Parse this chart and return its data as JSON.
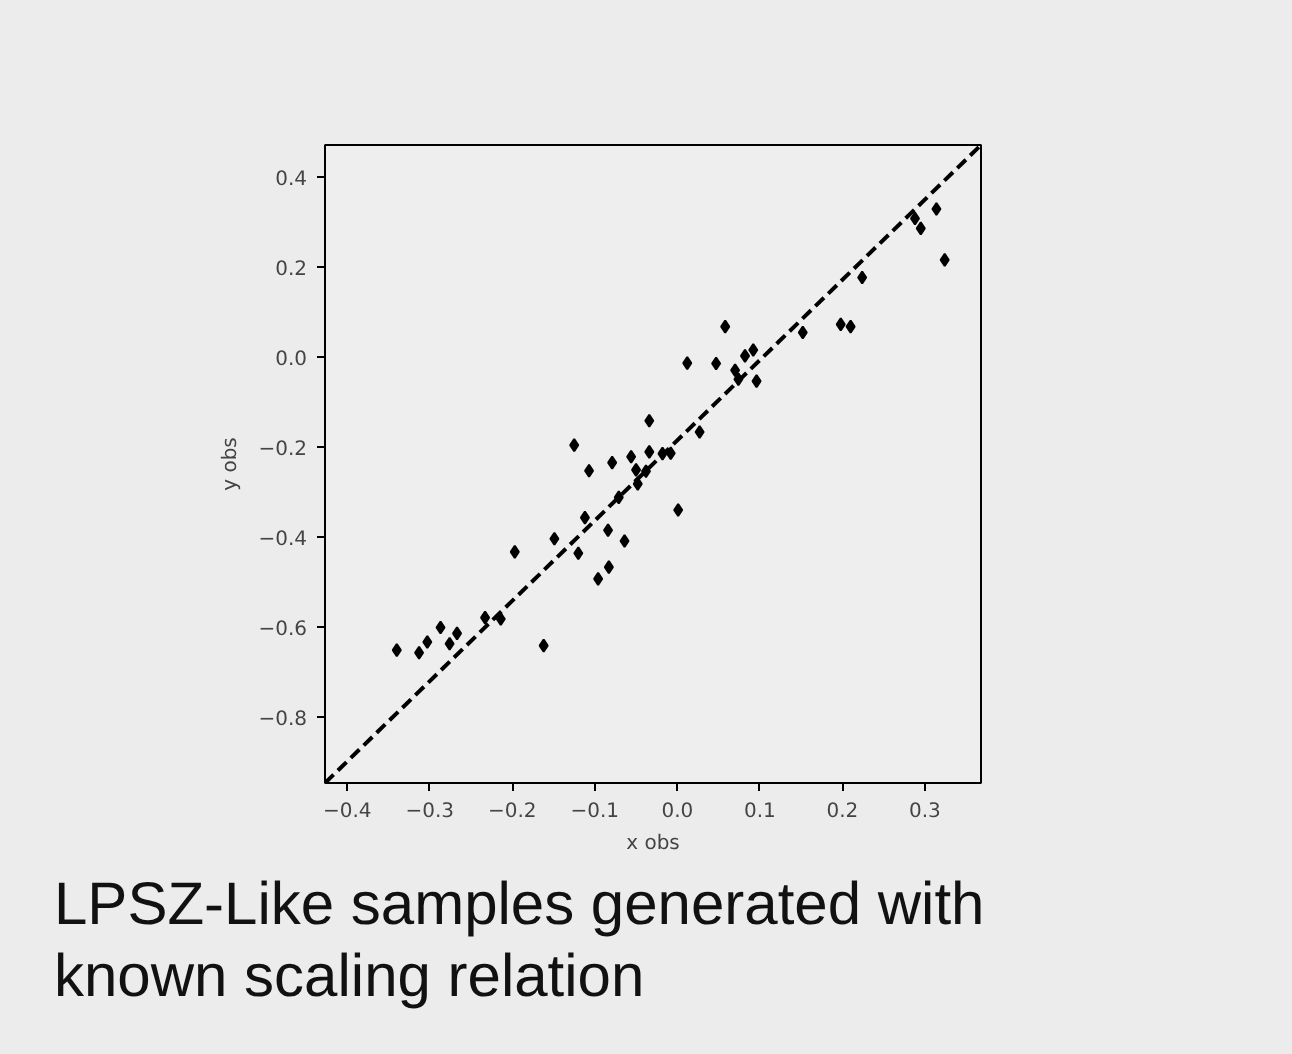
{
  "chart_data": {
    "type": "scatter",
    "xlabel": "x obs",
    "ylabel": "y obs",
    "annotations": [
      "LPSZ-Like samples generated with known scaling relation"
    ],
    "xlim": [
      -0.427,
      0.368
    ],
    "ylim": [
      -0.946,
      0.47
    ],
    "xticks": [
      {
        "value": -0.4,
        "label": "−0.4"
      },
      {
        "value": -0.3,
        "label": "−0.3"
      },
      {
        "value": -0.2,
        "label": "−0.2"
      },
      {
        "value": -0.1,
        "label": "−0.1"
      },
      {
        "value": 0.0,
        "label": "0.0"
      },
      {
        "value": 0.1,
        "label": "0.1"
      },
      {
        "value": 0.2,
        "label": "0.2"
      },
      {
        "value": 0.3,
        "label": "0.3"
      }
    ],
    "yticks": [
      {
        "value": -0.8,
        "label": "−0.8"
      },
      {
        "value": -0.6,
        "label": "−0.6"
      },
      {
        "value": -0.4,
        "label": "−0.4"
      },
      {
        "value": -0.2,
        "label": "−0.2"
      },
      {
        "value": 0.0,
        "label": "0.0"
      },
      {
        "value": 0.2,
        "label": "0.2"
      },
      {
        "value": 0.4,
        "label": "0.4"
      }
    ],
    "grid": false,
    "series": [
      {
        "type": "line",
        "color": "#000000",
        "line_style": "dashed",
        "marker": "none",
        "x": [
          -0.427,
          0.368
        ],
        "values": [
          -0.946,
          0.47
        ]
      },
      {
        "color": "#000000",
        "marker": "diamond",
        "x": [
          -0.034,
          0.027,
          -0.125,
          -0.107,
          -0.079,
          -0.056,
          -0.034,
          -0.008,
          -0.05,
          -0.038,
          -0.018,
          -0.048,
          -0.071,
          -0.112,
          0.001,
          -0.149,
          -0.084,
          -0.064,
          -0.12,
          -0.197,
          -0.083,
          -0.096,
          -0.233,
          -0.214,
          -0.287,
          -0.267,
          -0.303,
          -0.276,
          -0.34,
          -0.313,
          -0.162,
          0.058,
          0.012,
          0.047,
          0.07,
          0.082,
          0.092,
          0.074,
          0.096,
          0.152,
          0.198,
          0.21,
          0.224,
          0.288,
          0.295,
          0.314,
          0.324
        ],
        "values": [
          -0.142,
          -0.167,
          -0.196,
          -0.253,
          -0.235,
          -0.222,
          -0.211,
          -0.214,
          -0.251,
          -0.254,
          -0.215,
          -0.282,
          -0.312,
          -0.357,
          -0.34,
          -0.404,
          -0.385,
          -0.409,
          -0.436,
          -0.433,
          -0.467,
          -0.493,
          -0.579,
          -0.582,
          -0.601,
          -0.614,
          -0.633,
          -0.637,
          -0.651,
          -0.657,
          -0.641,
          0.067,
          -0.014,
          -0.015,
          -0.03,
          0.002,
          0.015,
          -0.05,
          -0.054,
          0.054,
          0.072,
          0.067,
          0.176,
          0.307,
          0.285,
          0.328,
          0.215
        ]
      }
    ]
  }
}
